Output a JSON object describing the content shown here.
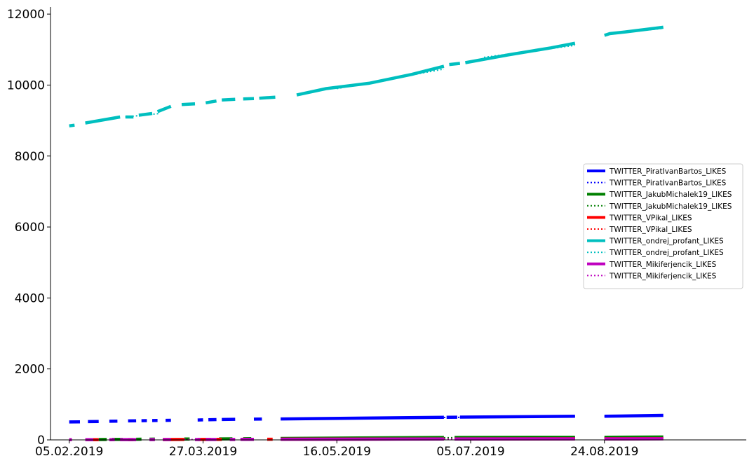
{
  "chart_data": {
    "type": "line",
    "title": "",
    "xlabel": "",
    "ylabel": "",
    "ylim": [
      0,
      12200
    ],
    "xlim": [
      "2019-01-29",
      "2019-10-16"
    ],
    "y_ticks": [
      0,
      2000,
      4000,
      6000,
      8000,
      10000,
      12000
    ],
    "x_ticks": [
      "2019-02-05",
      "2019-03-27",
      "2019-05-16",
      "2019-07-05",
      "2019-08-24"
    ],
    "x_tick_labels": [
      "05.02.2019",
      "27.03.2019",
      "16.05.2019",
      "05.07.2019",
      "24.08.2019"
    ],
    "grid": false,
    "legend_position": "center-right",
    "series": [
      {
        "name": "TWITTER_PiratIvanBartos_LIKES",
        "color": "#0000ff",
        "style": "solid",
        "segments": [
          [
            [
              "2019-02-05",
              505
            ],
            [
              "2019-02-09",
              510
            ]
          ],
          [
            [
              "2019-02-12",
              515
            ],
            [
              "2019-02-16",
              520
            ]
          ],
          [
            [
              "2019-02-20",
              525
            ],
            [
              "2019-02-23",
              530
            ]
          ],
          [
            [
              "2019-02-27",
              535
            ],
            [
              "2019-03-02",
              538
            ]
          ],
          [
            [
              "2019-03-04",
              540
            ],
            [
              "2019-03-06",
              542
            ]
          ],
          [
            [
              "2019-03-08",
              545
            ],
            [
              "2019-03-10",
              547
            ]
          ],
          [
            [
              "2019-03-13",
              550
            ],
            [
              "2019-03-15",
              552
            ]
          ],
          [
            [
              "2019-03-25",
              560
            ],
            [
              "2019-03-27",
              565
            ]
          ],
          [
            [
              "2019-03-29",
              568
            ],
            [
              "2019-04-01",
              572
            ]
          ],
          [
            [
              "2019-04-03",
              575
            ],
            [
              "2019-04-08",
              580
            ]
          ],
          [
            [
              "2019-04-15",
              585
            ],
            [
              "2019-04-18",
              588
            ]
          ],
          [
            [
              "2019-04-25",
              590
            ],
            [
              "2019-06-25",
              635
            ]
          ],
          [
            [
              "2019-06-26",
              638
            ],
            [
              "2019-06-30",
              640
            ]
          ],
          [
            [
              "2019-07-01",
              642
            ],
            [
              "2019-08-13",
              665
            ]
          ],
          [
            [
              "2019-08-24",
              665
            ],
            [
              "2019-09-15",
              690
            ]
          ]
        ]
      },
      {
        "name": "TWITTER_PiratIvanBartos_LIKES",
        "color": "#0000ff",
        "style": "dotted",
        "segments": [
          [
            [
              "2019-05-01",
              597
            ],
            [
              "2019-08-13",
              662
            ]
          ],
          [
            [
              "2019-08-24",
              663
            ],
            [
              "2019-09-15",
              688
            ]
          ]
        ]
      },
      {
        "name": "TWITTER_JakubMichalek19_LIKES",
        "color": "#008000",
        "style": "solid",
        "segments": [
          [
            [
              "2019-02-16",
              10
            ],
            [
              "2019-02-19",
              12
            ]
          ],
          [
            [
              "2019-02-21",
              14
            ],
            [
              "2019-02-25",
              16
            ]
          ],
          [
            [
              "2019-03-02",
              18
            ],
            [
              "2019-03-04",
              20
            ]
          ],
          [
            [
              "2019-03-07",
              20
            ],
            [
              "2019-03-09",
              22
            ]
          ],
          [
            [
              "2019-03-20",
              24
            ],
            [
              "2019-03-22",
              25
            ]
          ],
          [
            [
              "2019-04-02",
              28
            ],
            [
              "2019-04-07",
              30
            ]
          ],
          [
            [
              "2019-04-11",
              32
            ],
            [
              "2019-04-14",
              34
            ]
          ],
          [
            [
              "2019-04-25",
              40
            ],
            [
              "2019-06-25",
              70
            ]
          ],
          [
            [
              "2019-06-29",
              70
            ],
            [
              "2019-08-13",
              75
            ]
          ],
          [
            [
              "2019-08-24",
              75
            ],
            [
              "2019-09-15",
              80
            ]
          ]
        ]
      },
      {
        "name": "TWITTER_JakubMichalek19_LIKES",
        "color": "#008000",
        "style": "dotted",
        "segments": [
          [
            [
              "2019-05-01",
              50
            ],
            [
              "2019-08-13",
              73
            ]
          ],
          [
            [
              "2019-08-24",
              74
            ],
            [
              "2019-09-15",
              78
            ]
          ]
        ]
      },
      {
        "name": "TWITTER_VPikal_LIKES",
        "color": "#ff0000",
        "style": "solid",
        "segments": [
          [
            [
              "2019-02-14",
              5
            ],
            [
              "2019-02-16",
              6
            ]
          ],
          [
            [
              "2019-02-27",
              8
            ],
            [
              "2019-03-01",
              8
            ]
          ],
          [
            [
              "2019-03-12",
              10
            ],
            [
              "2019-03-20",
              12
            ]
          ],
          [
            [
              "2019-03-25",
              12
            ],
            [
              "2019-03-30",
              14
            ]
          ],
          [
            [
              "2019-04-01",
              14
            ],
            [
              "2019-04-03",
              15
            ]
          ],
          [
            [
              "2019-04-10",
              16
            ],
            [
              "2019-04-12",
              17
            ]
          ],
          [
            [
              "2019-04-20",
              18
            ],
            [
              "2019-04-22",
              18
            ]
          ],
          [
            [
              "2019-04-25",
              20
            ],
            [
              "2019-06-25",
              28
            ]
          ],
          [
            [
              "2019-06-29",
              28
            ],
            [
              "2019-08-13",
              32
            ]
          ],
          [
            [
              "2019-08-24",
              32
            ],
            [
              "2019-09-15",
              35
            ]
          ]
        ]
      },
      {
        "name": "TWITTER_VPikal_LIKES",
        "color": "#ff0000",
        "style": "dotted",
        "segments": [
          [
            [
              "2019-05-01",
              22
            ],
            [
              "2019-08-13",
              31
            ]
          ]
        ]
      },
      {
        "name": "TWITTER_ondrej_profant_LIKES",
        "color": "#00bfbf",
        "style": "solid",
        "segments": [
          [
            [
              "2019-02-05",
              8850
            ],
            [
              "2019-02-07",
              8870
            ]
          ],
          [
            [
              "2019-02-11",
              8930
            ],
            [
              "2019-02-24",
              9100
            ]
          ],
          [
            [
              "2019-02-26",
              9100
            ],
            [
              "2019-03-01",
              9100
            ]
          ],
          [
            [
              "2019-03-03",
              9150
            ],
            [
              "2019-03-08",
              9200
            ]
          ],
          [
            [
              "2019-03-10",
              9250
            ],
            [
              "2019-03-15",
              9400
            ]
          ],
          [
            [
              "2019-03-19",
              9450
            ],
            [
              "2019-03-24",
              9470
            ]
          ],
          [
            [
              "2019-03-28",
              9500
            ],
            [
              "2019-04-01",
              9550
            ]
          ],
          [
            [
              "2019-04-03",
              9580
            ],
            [
              "2019-04-08",
              9600
            ]
          ],
          [
            [
              "2019-04-11",
              9610
            ],
            [
              "2019-04-15",
              9620
            ]
          ],
          [
            [
              "2019-04-17",
              9630
            ],
            [
              "2019-04-23",
              9660
            ]
          ],
          [
            [
              "2019-05-01",
              9720
            ],
            [
              "2019-05-12",
              9900
            ],
            [
              "2019-05-28",
              10050
            ],
            [
              "2019-06-13",
              10300
            ],
            [
              "2019-06-25",
              10530
            ]
          ],
          [
            [
              "2019-06-27",
              10580
            ],
            [
              "2019-07-01",
              10610
            ]
          ],
          [
            [
              "2019-07-03",
              10630
            ],
            [
              "2019-07-19",
              10850
            ],
            [
              "2019-08-04",
              11050
            ],
            [
              "2019-08-13",
              11180
            ]
          ],
          [
            [
              "2019-08-24",
              11400
            ],
            [
              "2019-08-26",
              11450
            ],
            [
              "2019-09-01",
              11500
            ],
            [
              "2019-09-15",
              11630
            ]
          ]
        ]
      },
      {
        "name": "TWITTER_ondrej_profant_LIKES",
        "color": "#00bfbf",
        "style": "dotted",
        "segments": [
          [
            [
              "2019-02-26",
              9100
            ],
            [
              "2019-03-11",
              9200
            ]
          ],
          [
            [
              "2019-05-16",
              9900
            ],
            [
              "2019-06-25",
              10450
            ]
          ],
          [
            [
              "2019-07-10",
              10780
            ],
            [
              "2019-08-13",
              11120
            ]
          ],
          [
            [
              "2019-08-24",
              11420
            ],
            [
              "2019-09-15",
              11600
            ]
          ]
        ]
      },
      {
        "name": "TWITTER_Mikiferjencik_LIKES",
        "color": "#bf00bf",
        "style": "solid",
        "segments": [
          [
            [
              "2019-02-05",
              5
            ],
            [
              "2019-02-06",
              5
            ]
          ],
          [
            [
              "2019-02-11",
              5
            ],
            [
              "2019-02-14",
              6
            ]
          ],
          [
            [
              "2019-02-20",
              6
            ],
            [
              "2019-02-22",
              7
            ]
          ],
          [
            [
              "2019-02-24",
              7
            ],
            [
              "2019-03-02",
              8
            ]
          ],
          [
            [
              "2019-03-07",
              8
            ],
            [
              "2019-03-09",
              8
            ]
          ],
          [
            [
              "2019-03-12",
              9
            ],
            [
              "2019-03-15",
              10
            ]
          ],
          [
            [
              "2019-03-24",
              10
            ],
            [
              "2019-03-26",
              10
            ]
          ],
          [
            [
              "2019-03-28",
              11
            ],
            [
              "2019-04-01",
              12
            ]
          ],
          [
            [
              "2019-04-06",
              12
            ],
            [
              "2019-04-08",
              12
            ]
          ],
          [
            [
              "2019-04-10",
              13
            ],
            [
              "2019-04-15",
              14
            ]
          ],
          [
            [
              "2019-04-25",
              18
            ],
            [
              "2019-06-25",
              24
            ]
          ],
          [
            [
              "2019-06-29",
              24
            ],
            [
              "2019-08-13",
              28
            ]
          ],
          [
            [
              "2019-08-24",
              28
            ],
            [
              "2019-09-15",
              30
            ]
          ]
        ]
      },
      {
        "name": "TWITTER_Mikiferjencik_LIKES",
        "color": "#bf00bf",
        "style": "dotted",
        "segments": [
          [
            [
              "2019-03-20",
              10
            ],
            [
              "2019-03-25",
              10
            ]
          ],
          [
            [
              "2019-05-01",
              20
            ],
            [
              "2019-08-13",
              27
            ]
          ]
        ]
      }
    ]
  }
}
